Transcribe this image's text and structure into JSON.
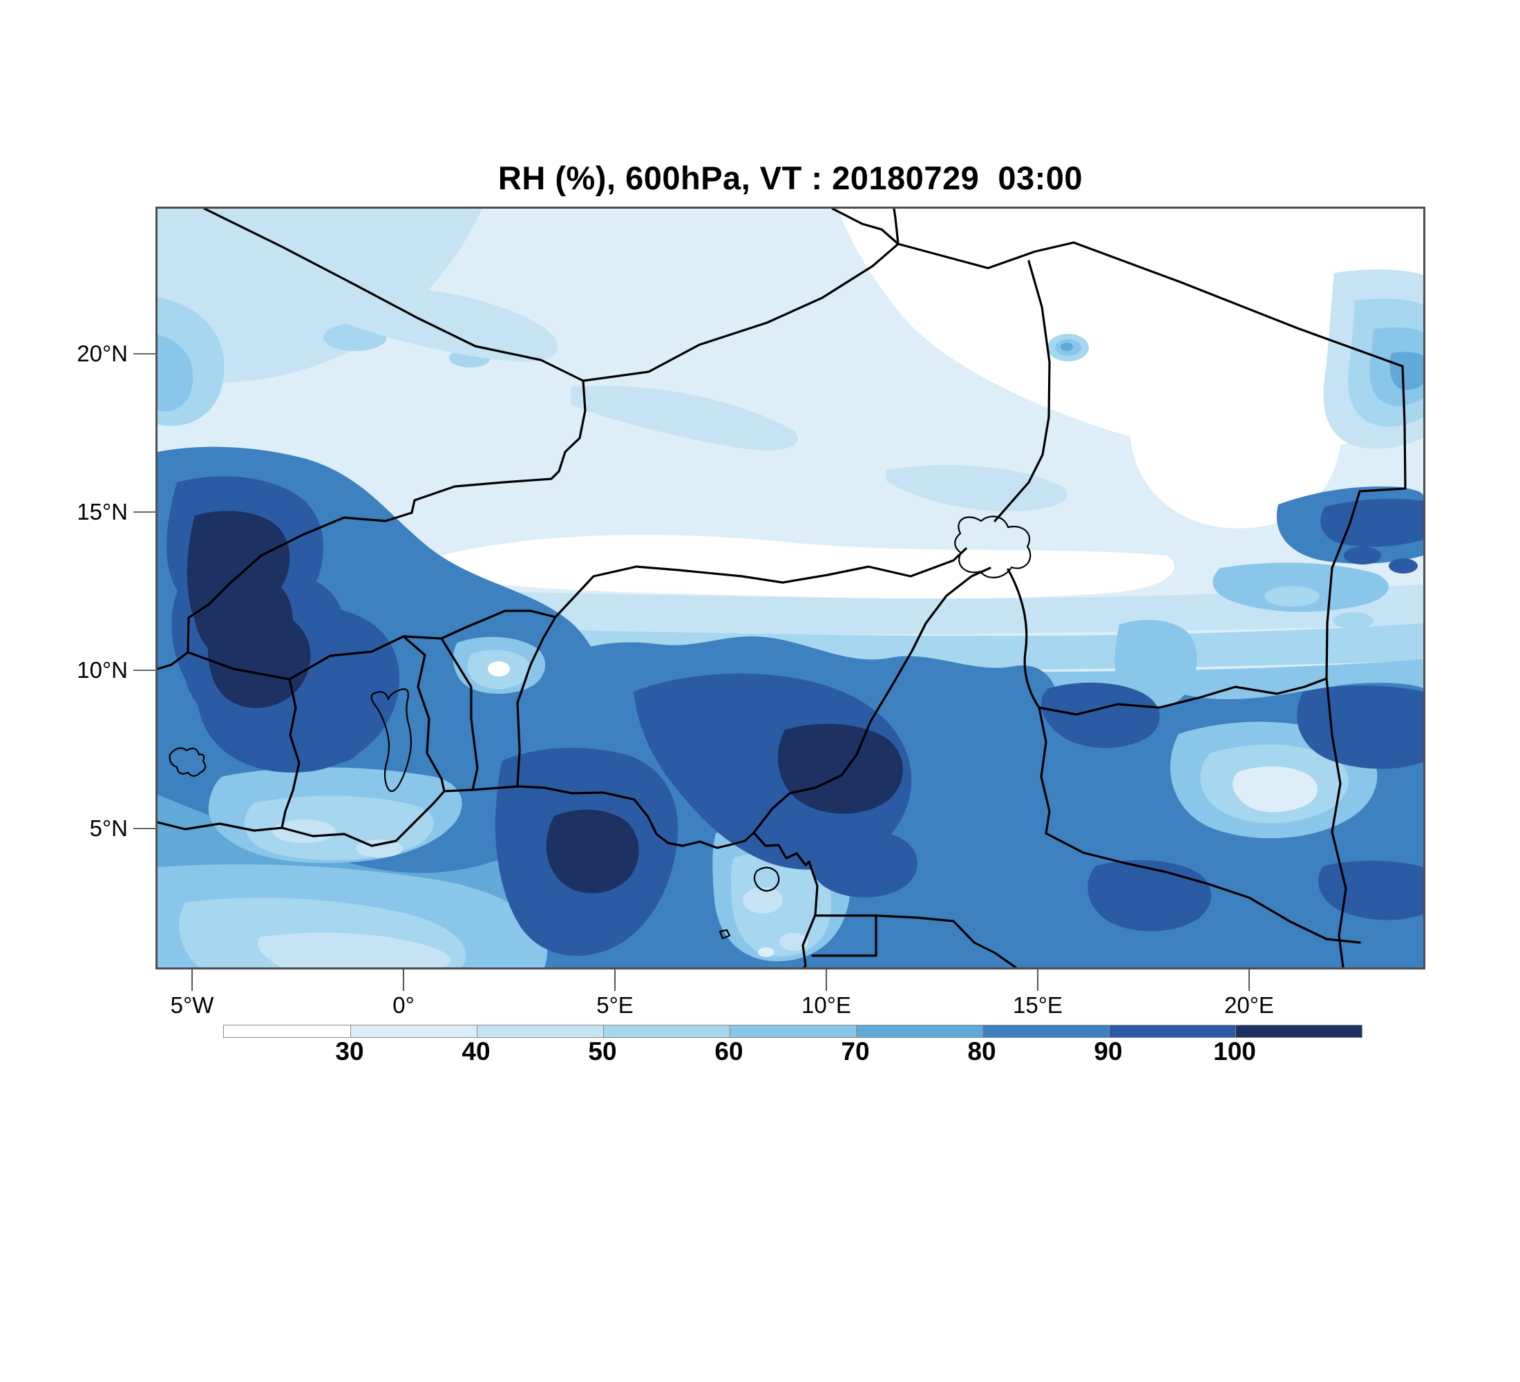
{
  "title": "RH (%), 600hPa, VT : 20180729  03:00",
  "map": {
    "x_axis_ticks": [
      "5°W",
      "0°",
      "5°E",
      "10°E",
      "15°E",
      "20°E"
    ],
    "y_axis_ticks": [
      "20°N",
      "15°N",
      "10°N",
      "5°N"
    ]
  },
  "colorbar": {
    "labels": [
      "30",
      "40",
      "50",
      "60",
      "70",
      "80",
      "90",
      "100"
    ],
    "colors": [
      "#ffffff",
      "#ddeef9",
      "#c6e3f4",
      "#a7d6ef",
      "#8ac6e9",
      "#60a9d8",
      "#3d81c1",
      "#2c5ba6",
      "#1d3162"
    ],
    "palette": {
      "c1": "#ffffff",
      "c2": "#ddeef9",
      "c3": "#c6e3f4",
      "c4": "#a7d6ef",
      "c5": "#8ac6e9",
      "c6": "#60a9d8",
      "c7": "#3d81c1",
      "c8": "#2c5ba6",
      "c9": "#1d3162",
      "border": "#000000",
      "frame": "#4e4e4e",
      "tick": "#666666"
    }
  },
  "chart_data": {
    "type": "heatmap",
    "subtype": "filled contour weather map",
    "title": "RH (%), 600hPa, VT : 20180729  03:00",
    "variable": "Relative humidity",
    "units": "%",
    "pressure_level": "600hPa",
    "valid_time_label": "VT : 20180729  03:00",
    "x": {
      "ticks": [
        "5°W",
        "0°",
        "5°E",
        "10°E",
        "15°E",
        "20°E"
      ],
      "approx_range": [
        "5.8°W",
        "24.1°E"
      ]
    },
    "y": {
      "ticks": [
        "5°N",
        "10°N",
        "15°N",
        "20°N"
      ],
      "approx_range": [
        "0.6°N",
        "24.6°N"
      ]
    },
    "contour_levels": [
      30,
      40,
      50,
      60,
      70,
      80,
      90,
      100
    ],
    "legend_position": "bottom",
    "grid": false,
    "overlays": [
      "country borders (West/Central Africa)",
      "Gulf of Guinea coastline",
      "Lake Chad",
      "Lake Volta",
      "Bioko island"
    ],
    "regions": [
      {
        "area": "Northeast corner (Libya / NE Niger desert)",
        "rh_percent": "< 30"
      },
      {
        "area": "Sahara band north of ~15°N",
        "rh_percent": "30-50"
      },
      {
        "area": "Narrow Sahel strip ~13-15°N across Niger into Chad",
        "rh_percent": "< 30-40"
      },
      {
        "area": "Mali / Burkina Faso ~11-15°N west of 2°E",
        "rh_percent": "80-100 with >100 cores"
      },
      {
        "area": "Ghana / Côte d'Ivoire interior",
        "rh_percent": "90-100 with >100 navy cores"
      },
      {
        "area": "Benin ~10°N pocket",
        "rh_percent": "30-50 local dry spot"
      },
      {
        "area": "Southern Nigeria and Bight of Benin",
        "rh_percent": "80-100 with >100 cores"
      },
      {
        "area": "Cameroon / CAR / southern Chad",
        "rh_percent": "70-90"
      },
      {
        "area": "SE interior pocket near 20°E, 7°N",
        "rh_percent": "30-50"
      },
      {
        "area": "Eastern Chad / Sudan border ~13-16°N",
        "rh_percent": "80-100"
      },
      {
        "area": "Gulf of Guinea west of 0° and coastal waters",
        "rh_percent": "40-60"
      }
    ]
  }
}
